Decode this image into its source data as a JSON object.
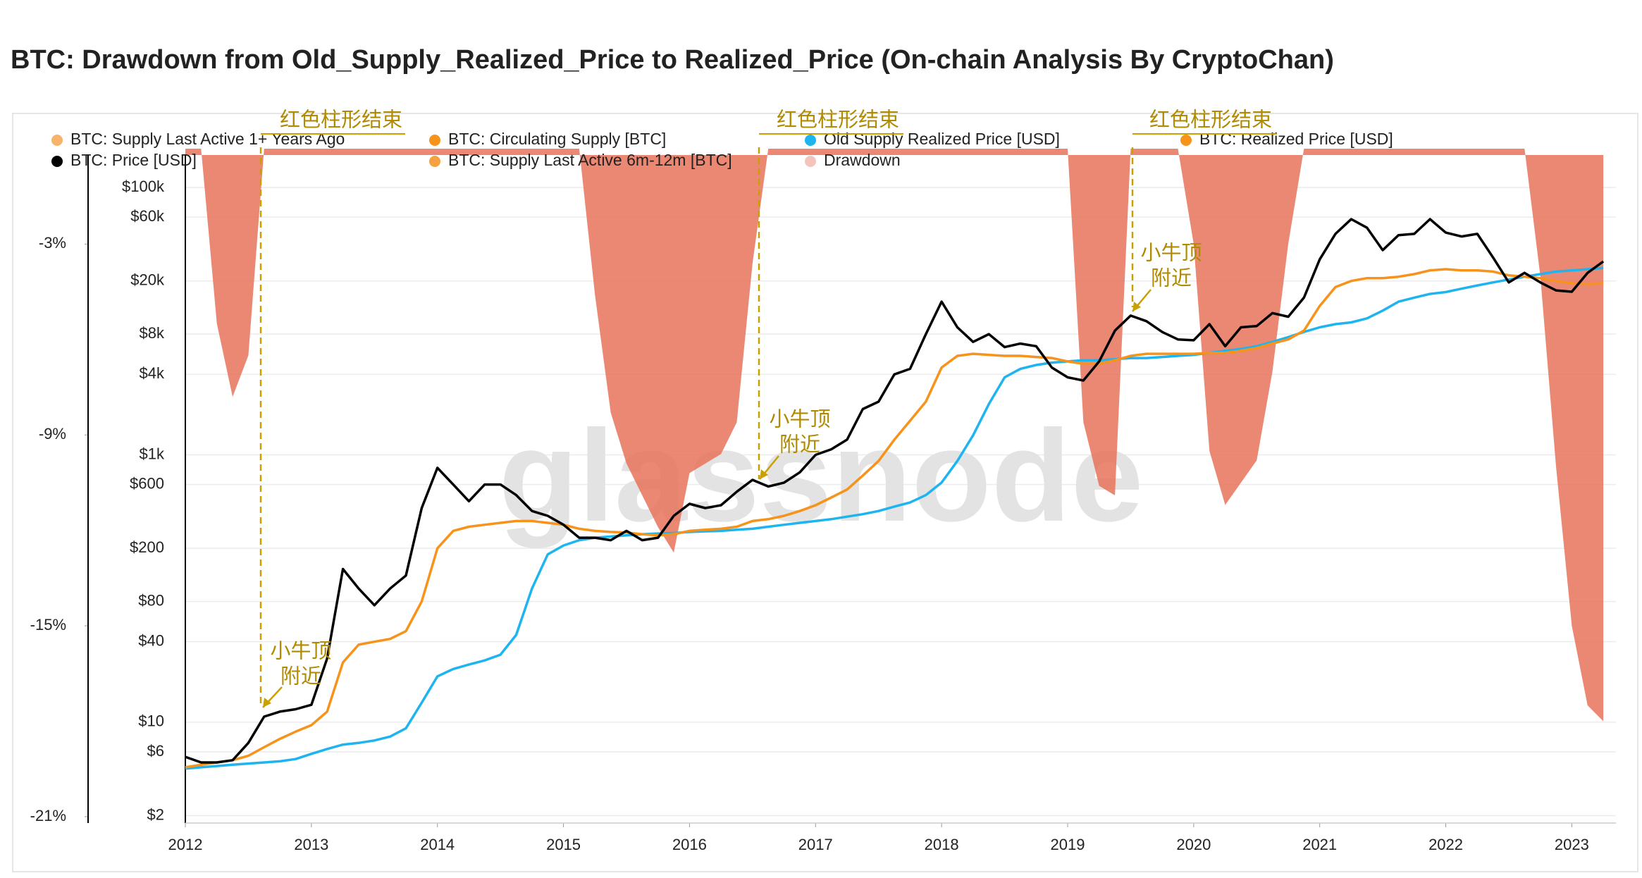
{
  "chart_data": {
    "type": "line",
    "title": "BTC: Drawdown from Old_Supply_Realized_Price to Realized_Price (On-chain Analysis By CryptoChan)",
    "watermark": "glassnode",
    "log_y": true,
    "grid": true,
    "xlim": [
      2012,
      2023.35
    ],
    "xticks": [
      2012,
      2013,
      2014,
      2015,
      2016,
      2017,
      2018,
      2019,
      2020,
      2021,
      2022,
      2023
    ],
    "ylim": [
      1.76,
      175000
    ],
    "yticks": [
      {
        "value": 2,
        "label": "$2"
      },
      {
        "value": 6,
        "label": "$6"
      },
      {
        "value": 10,
        "label": "$10"
      },
      {
        "value": 40,
        "label": "$40"
      },
      {
        "value": 80,
        "label": "$80"
      },
      {
        "value": 200,
        "label": "$200"
      },
      {
        "value": 600,
        "label": "$600"
      },
      {
        "value": 1000,
        "label": "$1k"
      },
      {
        "value": 4000,
        "label": "$4k"
      },
      {
        "value": 8000,
        "label": "$8k"
      },
      {
        "value": 20000,
        "label": "$20k"
      },
      {
        "value": 60000,
        "label": "$60k"
      },
      {
        "value": 100000,
        "label": "$100k"
      }
    ],
    "y2lim": [
      -0.2,
      -21.2
    ],
    "y2ticks": [
      {
        "value": -3,
        "label": "-3%"
      },
      {
        "value": -9,
        "label": "-9%"
      },
      {
        "value": -15,
        "label": "-15%"
      },
      {
        "value": -21,
        "label": "-21%"
      }
    ],
    "x": [
      2012,
      2012.125,
      2012.25,
      2012.375,
      2012.5,
      2012.625,
      2012.75,
      2012.875,
      2013,
      2013.125,
      2013.25,
      2013.375,
      2013.5,
      2013.625,
      2013.75,
      2013.875,
      2014,
      2014.125,
      2014.25,
      2014.375,
      2014.5,
      2014.625,
      2014.75,
      2014.875,
      2015,
      2015.125,
      2015.25,
      2015.375,
      2015.5,
      2015.625,
      2015.75,
      2015.875,
      2016,
      2016.125,
      2016.25,
      2016.375,
      2016.5,
      2016.625,
      2016.75,
      2016.875,
      2017,
      2017.125,
      2017.25,
      2017.375,
      2017.5,
      2017.625,
      2017.75,
      2017.875,
      2018,
      2018.125,
      2018.25,
      2018.375,
      2018.5,
      2018.625,
      2018.75,
      2018.875,
      2019,
      2019.125,
      2019.25,
      2019.375,
      2019.5,
      2019.625,
      2019.75,
      2019.875,
      2020,
      2020.125,
      2020.25,
      2020.375,
      2020.5,
      2020.625,
      2020.75,
      2020.875,
      2021,
      2021.125,
      2021.25,
      2021.375,
      2021.5,
      2021.625,
      2021.75,
      2021.875,
      2022,
      2022.125,
      2022.25,
      2022.375,
      2022.5,
      2022.625,
      2022.75,
      2022.875,
      2023,
      2023.125,
      2023.25
    ],
    "series": [
      {
        "name": "Drawdown",
        "color": "#e8735a",
        "legend_color": "#f4c4bc",
        "kind": "area",
        "axis": "y2",
        "values": [
          0,
          0,
          -5.5,
          -7.8,
          -6.5,
          0,
          0,
          0,
          0,
          0,
          0,
          0,
          0,
          0,
          0,
          0,
          0,
          0,
          0,
          0,
          0,
          0,
          0,
          0,
          0,
          0,
          -4.6,
          -8.3,
          -9.9,
          -10.9,
          -11.9,
          -12.7,
          -10.2,
          -9.9,
          -9.6,
          -8.6,
          -3.6,
          0,
          0,
          0,
          0,
          0,
          0,
          0,
          0,
          0,
          0,
          0,
          0,
          0,
          0,
          0,
          0,
          0,
          0,
          0,
          0,
          -8.6,
          -10.6,
          -10.9,
          0,
          0,
          0,
          0,
          -3,
          -9.5,
          -11.2,
          -10.5,
          -9.8,
          -7,
          -3,
          0,
          0,
          0,
          0,
          0,
          0,
          0,
          0,
          0,
          0,
          0,
          0,
          0,
          0,
          0,
          -4,
          -10,
          -15,
          -17.5,
          -18
        ]
      },
      {
        "name": "Old Supply Realized Price [USD]",
        "color": "#1eb4f0",
        "kind": "line",
        "values": [
          4.5,
          4.6,
          4.7,
          4.8,
          4.9,
          5,
          5.1,
          5.3,
          5.8,
          6.3,
          6.8,
          7,
          7.3,
          7.8,
          9,
          14,
          22,
          25,
          27,
          29,
          32,
          45,
          100,
          180,
          210,
          230,
          240,
          245,
          250,
          255,
          258,
          260,
          265,
          268,
          270,
          275,
          280,
          290,
          300,
          310,
          320,
          330,
          345,
          360,
          380,
          410,
          440,
          500,
          620,
          900,
          1400,
          2400,
          3800,
          4400,
          4700,
          4900,
          5000,
          5100,
          5100,
          5200,
          5300,
          5300,
          5400,
          5500,
          5600,
          5800,
          6000,
          6200,
          6500,
          7000,
          7600,
          8300,
          9000,
          9500,
          9800,
          10500,
          12000,
          14000,
          15000,
          16000,
          16500,
          17500,
          18500,
          19500,
          20500,
          21500,
          22500,
          23500,
          24000,
          24500,
          25000
        ]
      },
      {
        "name": "BTC: Realized Price [USD]",
        "color": "#f7931a",
        "kind": "line",
        "values": [
          4.6,
          4.8,
          5,
          5.2,
          5.6,
          6.5,
          7.5,
          8.5,
          9.5,
          12,
          28,
          38,
          40,
          42,
          48,
          80,
          200,
          270,
          290,
          300,
          310,
          320,
          320,
          310,
          300,
          280,
          270,
          265,
          262,
          255,
          250,
          255,
          270,
          275,
          280,
          290,
          320,
          330,
          350,
          380,
          420,
          480,
          550,
          700,
          900,
          1300,
          1800,
          2500,
          4500,
          5500,
          5700,
          5600,
          5500,
          5500,
          5400,
          5300,
          5000,
          4800,
          4800,
          5100,
          5500,
          5700,
          5700,
          5700,
          5700,
          5800,
          5800,
          6000,
          6300,
          6800,
          7300,
          8500,
          13000,
          18000,
          20000,
          21000,
          21000,
          21500,
          22500,
          24000,
          24500,
          24000,
          24000,
          23500,
          22000,
          21500,
          21000,
          20000,
          19200,
          19000,
          19200
        ]
      },
      {
        "name": "BTC: Price [USD]",
        "color": "#000000",
        "kind": "line",
        "values": [
          5.5,
          5,
          5,
          5.2,
          7,
          11,
          12,
          12.5,
          13.5,
          30,
          140,
          100,
          75,
          100,
          125,
          400,
          800,
          600,
          450,
          600,
          600,
          500,
          380,
          350,
          300,
          240,
          240,
          230,
          270,
          230,
          240,
          350,
          430,
          400,
          420,
          530,
          650,
          580,
          620,
          740,
          1000,
          1100,
          1300,
          2200,
          2500,
          4000,
          4400,
          8000,
          14000,
          9000,
          7000,
          8000,
          6400,
          6800,
          6500,
          4500,
          3800,
          3600,
          5000,
          8500,
          11000,
          10000,
          8300,
          7300,
          7200,
          9500,
          6500,
          9000,
          9200,
          11500,
          10800,
          15000,
          29000,
          45000,
          58000,
          50000,
          34000,
          44000,
          45000,
          58000,
          46000,
          43000,
          45000,
          30000,
          19500,
          23000,
          19500,
          17000,
          16600,
          23000,
          28000
        ]
      }
    ],
    "hidden_series": [
      {
        "name": "BTC: Supply Last Active 1+ Years Ago",
        "color": "#f7b36a"
      },
      {
        "name": "BTC: Circulating Supply [BTC]",
        "color": "#f7931a"
      },
      {
        "name": "BTC: Supply Last Active 6m-12m [BTC]",
        "color": "#f7a040"
      }
    ],
    "annotations": [
      [
        "红色柱形结束"
      ],
      [
        "小牛顶",
        "附近"
      ],
      [
        "红色柱形结束"
      ],
      [
        "小牛顶",
        "附近"
      ],
      [
        "红色柱形结束"
      ],
      [
        "小牛顶",
        "附近"
      ]
    ]
  }
}
